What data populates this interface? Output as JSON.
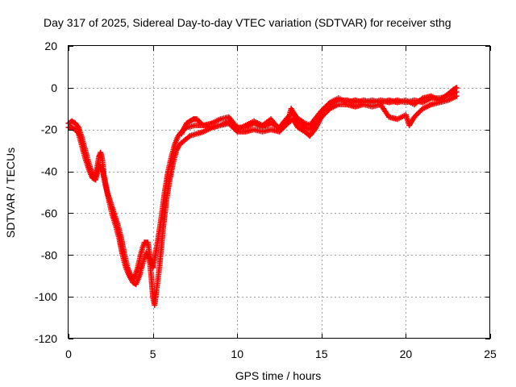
{
  "chart_data": {
    "type": "scatter",
    "title": "Day 317 of 2025, Sidereal Day-to-day VTEC variation (SDTVAR) for receiver sthg",
    "xlabel": "GPS time / hours",
    "ylabel": "SDTVAR / TECUs",
    "xlim": [
      0,
      25
    ],
    "ylim": [
      -120,
      20
    ],
    "xticks": [
      0,
      5,
      10,
      15,
      20,
      25
    ],
    "yticks": [
      -120,
      -100,
      -80,
      -60,
      -40,
      -20,
      0,
      20
    ],
    "grid": true,
    "marker": "+",
    "color": "#ff0000",
    "series": [
      {
        "values": [
          [
            0.0,
            -17
          ],
          [
            0.2,
            -16
          ],
          [
            0.4,
            -17
          ],
          [
            0.6,
            -19
          ],
          [
            0.8,
            -24
          ],
          [
            1.0,
            -30
          ],
          [
            1.2,
            -36
          ],
          [
            1.4,
            -41
          ],
          [
            1.6,
            -42
          ],
          [
            1.7,
            -38
          ],
          [
            1.8,
            -33
          ],
          [
            1.9,
            -31
          ],
          [
            2.0,
            -34
          ],
          [
            2.1,
            -42
          ],
          [
            2.3,
            -50
          ],
          [
            2.5,
            -55
          ],
          [
            2.7,
            -60
          ],
          [
            2.9,
            -65
          ],
          [
            3.1,
            -71
          ],
          [
            3.3,
            -79
          ],
          [
            3.5,
            -86
          ],
          [
            3.7,
            -90
          ],
          [
            3.9,
            -91
          ],
          [
            4.1,
            -86
          ],
          [
            4.3,
            -79
          ],
          [
            4.5,
            -74
          ],
          [
            4.7,
            -74
          ],
          [
            4.8,
            -79
          ],
          [
            4.9,
            -84
          ],
          [
            5.0,
            -86
          ],
          [
            5.1,
            -82
          ],
          [
            5.3,
            -73
          ],
          [
            5.5,
            -62
          ],
          [
            5.7,
            -50
          ],
          [
            5.9,
            -40
          ],
          [
            6.1,
            -33
          ],
          [
            6.3,
            -27
          ],
          [
            6.5,
            -23
          ],
          [
            6.7,
            -21
          ],
          [
            7.0,
            -19
          ],
          [
            7.5,
            -18
          ],
          [
            8.0,
            -18
          ],
          [
            8.5,
            -17
          ],
          [
            9.0,
            -15
          ],
          [
            9.5,
            -14
          ],
          [
            10.0,
            -19
          ],
          [
            10.5,
            -19
          ],
          [
            11.0,
            -17
          ],
          [
            11.5,
            -19
          ],
          [
            12.0,
            -17
          ],
          [
            12.5,
            -19
          ],
          [
            13.0,
            -14
          ],
          [
            13.3,
            -12
          ],
          [
            13.6,
            -16
          ],
          [
            14.0,
            -19
          ],
          [
            14.3,
            -20
          ],
          [
            14.6,
            -17
          ],
          [
            15.0,
            -12
          ],
          [
            15.5,
            -8
          ],
          [
            16.0,
            -6
          ],
          [
            16.5,
            -6
          ],
          [
            17.0,
            -7
          ],
          [
            17.5,
            -6
          ],
          [
            18.0,
            -7
          ],
          [
            18.5,
            -6
          ],
          [
            19.0,
            -7
          ],
          [
            19.5,
            -6
          ],
          [
            20.0,
            -7
          ],
          [
            20.5,
            -6
          ],
          [
            21.0,
            -7
          ],
          [
            21.5,
            -5
          ],
          [
            22.0,
            -5
          ],
          [
            22.5,
            -4
          ],
          [
            23.0,
            -2
          ]
        ]
      },
      {
        "values": [
          [
            0.0,
            -19
          ],
          [
            0.2,
            -19
          ],
          [
            0.4,
            -20
          ],
          [
            0.6,
            -22
          ],
          [
            0.8,
            -28
          ],
          [
            1.0,
            -34
          ],
          [
            1.2,
            -39
          ],
          [
            1.4,
            -43
          ],
          [
            1.6,
            -44
          ],
          [
            1.7,
            -41
          ],
          [
            1.8,
            -37
          ],
          [
            2.0,
            -39
          ],
          [
            2.2,
            -47
          ],
          [
            2.4,
            -54
          ],
          [
            2.6,
            -61
          ],
          [
            2.8,
            -66
          ],
          [
            3.0,
            -72
          ],
          [
            3.2,
            -80
          ],
          [
            3.4,
            -86
          ],
          [
            3.6,
            -90
          ],
          [
            3.8,
            -93
          ],
          [
            4.0,
            -94
          ],
          [
            4.2,
            -90
          ],
          [
            4.4,
            -84
          ],
          [
            4.6,
            -79
          ],
          [
            4.8,
            -82
          ],
          [
            4.9,
            -90
          ],
          [
            5.0,
            -100
          ],
          [
            5.1,
            -104
          ],
          [
            5.2,
            -98
          ],
          [
            5.4,
            -85
          ],
          [
            5.6,
            -68
          ],
          [
            5.8,
            -54
          ],
          [
            6.0,
            -44
          ],
          [
            6.2,
            -36
          ],
          [
            6.4,
            -30
          ],
          [
            6.6,
            -27
          ],
          [
            6.9,
            -25
          ],
          [
            7.2,
            -23
          ],
          [
            7.6,
            -22
          ],
          [
            8.0,
            -21
          ],
          [
            8.5,
            -19
          ],
          [
            9.0,
            -18
          ],
          [
            9.5,
            -17
          ],
          [
            10.0,
            -21
          ],
          [
            10.5,
            -21
          ],
          [
            11.0,
            -20
          ],
          [
            11.5,
            -21
          ],
          [
            12.0,
            -20
          ],
          [
            12.5,
            -21
          ],
          [
            13.0,
            -17
          ],
          [
            13.3,
            -15
          ],
          [
            13.6,
            -19
          ],
          [
            14.0,
            -21
          ],
          [
            14.3,
            -23
          ],
          [
            14.6,
            -20
          ],
          [
            15.0,
            -14
          ],
          [
            15.5,
            -10
          ],
          [
            16.0,
            -8
          ],
          [
            16.5,
            -8
          ],
          [
            17.0,
            -9
          ],
          [
            17.5,
            -8
          ],
          [
            18.0,
            -9
          ],
          [
            18.5,
            -8
          ],
          [
            19.0,
            -14
          ],
          [
            19.5,
            -15
          ],
          [
            20.0,
            -13
          ],
          [
            20.2,
            -18
          ],
          [
            20.5,
            -14
          ],
          [
            21.0,
            -10
          ],
          [
            21.5,
            -8
          ],
          [
            22.0,
            -7
          ],
          [
            22.5,
            -6
          ],
          [
            23.0,
            -4
          ]
        ]
      },
      {
        "values": [
          [
            6.7,
            -22
          ],
          [
            6.8,
            -20
          ],
          [
            7.0,
            -17
          ],
          [
            7.2,
            -16
          ],
          [
            7.4,
            -15
          ],
          [
            7.6,
            -15
          ],
          [
            8.0,
            -18
          ],
          [
            8.5,
            -19
          ],
          [
            9.0,
            -18
          ],
          [
            9.5,
            -16
          ],
          [
            10.0,
            -20
          ],
          [
            10.5,
            -18
          ],
          [
            11.0,
            -16
          ],
          [
            11.5,
            -18
          ],
          [
            12.0,
            -15
          ],
          [
            12.5,
            -20
          ],
          [
            13.0,
            -16
          ],
          [
            13.2,
            -10
          ],
          [
            13.5,
            -14
          ],
          [
            14.0,
            -17
          ],
          [
            14.3,
            -18
          ],
          [
            14.6,
            -15
          ],
          [
            15.0,
            -11
          ],
          [
            15.5,
            -7
          ],
          [
            16.0,
            -5
          ],
          [
            16.5,
            -7
          ],
          [
            17.0,
            -6
          ],
          [
            17.5,
            -7
          ],
          [
            18.0,
            -6
          ],
          [
            18.5,
            -7
          ],
          [
            19.0,
            -6
          ],
          [
            19.5,
            -7
          ],
          [
            20.0,
            -6
          ],
          [
            20.5,
            -8
          ],
          [
            21.0,
            -5
          ],
          [
            21.5,
            -4
          ],
          [
            22.0,
            -6
          ],
          [
            22.5,
            -3
          ],
          [
            22.8,
            -1
          ],
          [
            23.0,
            0
          ]
        ]
      }
    ]
  }
}
